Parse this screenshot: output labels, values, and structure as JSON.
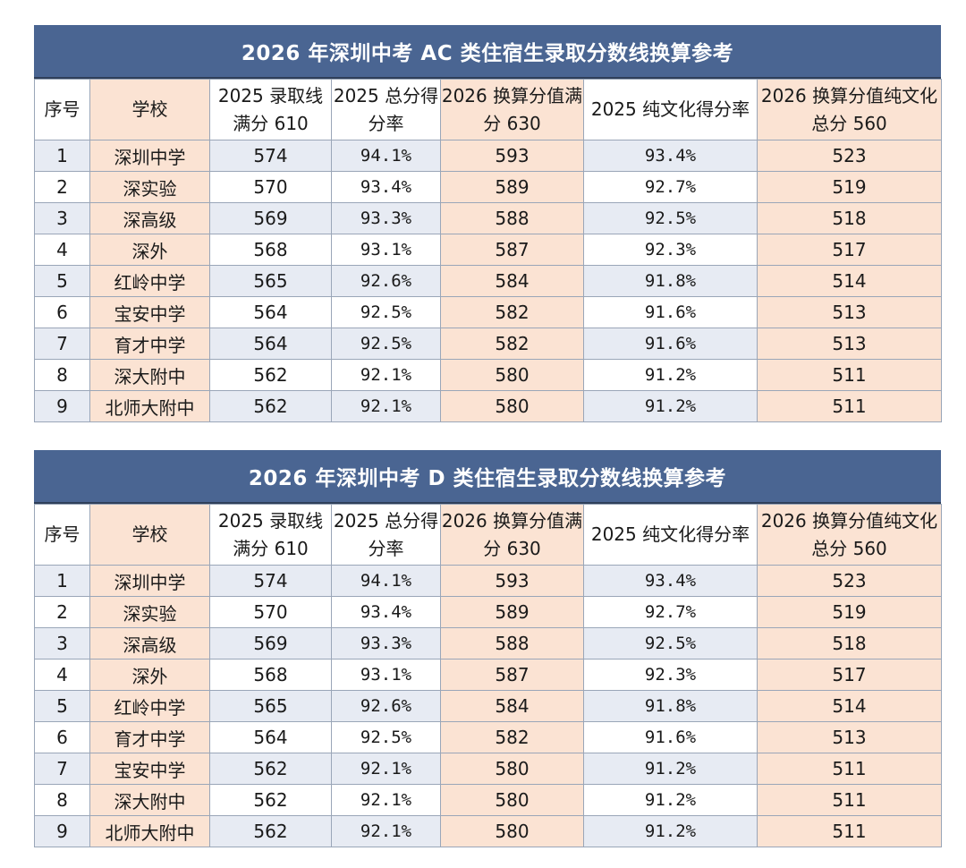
{
  "headers": {
    "seq": "序号",
    "school": "学校",
    "line2025": "2025 录取线满分 610",
    "rate2025": "2025 总分得分率",
    "conv2026": "2026 换算分值满分 630",
    "culture_rate2025": "2025 纯文化得分率",
    "conv2026_culture": "2026 换算分值纯文化总分 560"
  },
  "table_ac": {
    "title": "2026 年深圳中考 AC 类住宿生录取分数线换算参考",
    "rows": [
      {
        "seq": "1",
        "school": "深圳中学",
        "line": "574",
        "rate": "94.1%",
        "conv": "593",
        "crate": "93.4%",
        "cconv": "523"
      },
      {
        "seq": "2",
        "school": "深实验",
        "line": "570",
        "rate": "93.4%",
        "conv": "589",
        "crate": "92.7%",
        "cconv": "519"
      },
      {
        "seq": "3",
        "school": "深高级",
        "line": "569",
        "rate": "93.3%",
        "conv": "588",
        "crate": "92.5%",
        "cconv": "518"
      },
      {
        "seq": "4",
        "school": "深外",
        "line": "568",
        "rate": "93.1%",
        "conv": "587",
        "crate": "92.3%",
        "cconv": "517"
      },
      {
        "seq": "5",
        "school": "红岭中学",
        "line": "565",
        "rate": "92.6%",
        "conv": "584",
        "crate": "91.8%",
        "cconv": "514"
      },
      {
        "seq": "6",
        "school": "宝安中学",
        "line": "564",
        "rate": "92.5%",
        "conv": "582",
        "crate": "91.6%",
        "cconv": "513"
      },
      {
        "seq": "7",
        "school": "育才中学",
        "line": "564",
        "rate": "92.5%",
        "conv": "582",
        "crate": "91.6%",
        "cconv": "513"
      },
      {
        "seq": "8",
        "school": "深大附中",
        "line": "562",
        "rate": "92.1%",
        "conv": "580",
        "crate": "91.2%",
        "cconv": "511"
      },
      {
        "seq": "9",
        "school": "北师大附中",
        "line": "562",
        "rate": "92.1%",
        "conv": "580",
        "crate": "91.2%",
        "cconv": "511"
      }
    ]
  },
  "table_d": {
    "title": "2026 年深圳中考 D 类住宿生录取分数线换算参考",
    "rows": [
      {
        "seq": "1",
        "school": "深圳中学",
        "line": "574",
        "rate": "94.1%",
        "conv": "593",
        "crate": "93.4%",
        "cconv": "523"
      },
      {
        "seq": "2",
        "school": "深实验",
        "line": "570",
        "rate": "93.4%",
        "conv": "589",
        "crate": "92.7%",
        "cconv": "519"
      },
      {
        "seq": "3",
        "school": "深高级",
        "line": "569",
        "rate": "93.3%",
        "conv": "588",
        "crate": "92.5%",
        "cconv": "518"
      },
      {
        "seq": "4",
        "school": "深外",
        "line": "568",
        "rate": "93.1%",
        "conv": "587",
        "crate": "92.3%",
        "cconv": "517"
      },
      {
        "seq": "5",
        "school": "红岭中学",
        "line": "565",
        "rate": "92.6%",
        "conv": "584",
        "crate": "91.8%",
        "cconv": "514"
      },
      {
        "seq": "6",
        "school": "育才中学",
        "line": "564",
        "rate": "92.5%",
        "conv": "582",
        "crate": "91.6%",
        "cconv": "513"
      },
      {
        "seq": "7",
        "school": "宝安中学",
        "line": "562",
        "rate": "92.1%",
        "conv": "580",
        "crate": "91.2%",
        "cconv": "511"
      },
      {
        "seq": "8",
        "school": "深大附中",
        "line": "562",
        "rate": "92.1%",
        "conv": "580",
        "crate": "91.2%",
        "cconv": "511"
      },
      {
        "seq": "9",
        "school": "北师大附中",
        "line": "562",
        "rate": "92.1%",
        "conv": "580",
        "crate": "91.2%",
        "cconv": "511"
      }
    ]
  },
  "colors": {
    "title_bar": "#4a6592",
    "peach": "#fbe3d3",
    "blue_stripe": "#e7ebf3"
  }
}
